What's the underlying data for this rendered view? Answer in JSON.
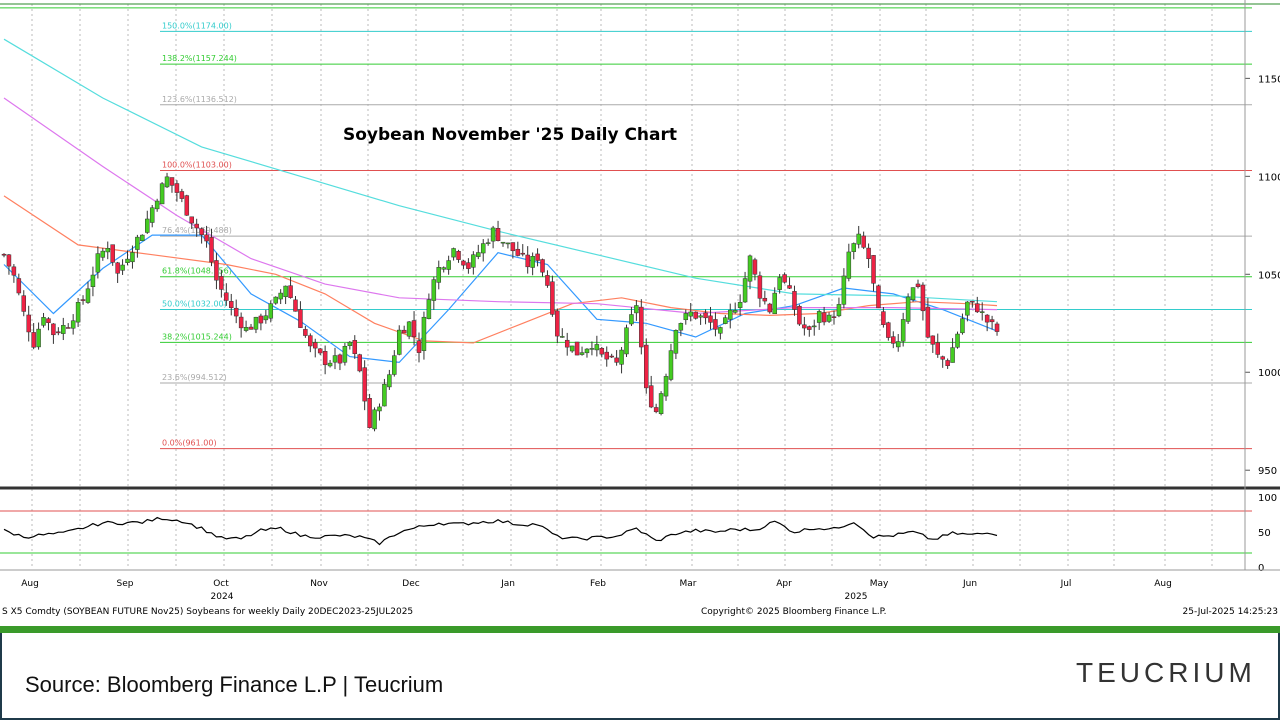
{
  "chart_data": {
    "type": "candlestick",
    "title": "Soybean November '25 Daily Chart",
    "price_axis": {
      "ticks": [
        950,
        1000,
        1050,
        1100,
        1150
      ],
      "range": [
        945,
        1190
      ]
    },
    "rsi_axis": {
      "ticks": [
        0,
        50,
        100
      ],
      "overbought": 80,
      "oversold": 20
    },
    "x_axis": {
      "months": [
        "Aug",
        "Sep",
        "Oct",
        "Nov",
        "Dec",
        "Jan",
        "Feb",
        "Mar",
        "Apr",
        "May",
        "Jun",
        "Jul",
        "Aug"
      ],
      "years": [
        "2024",
        "2025"
      ]
    },
    "fib_levels": [
      {
        "label": "0.0%(961.00)",
        "value": 961.0,
        "color": "#e05050"
      },
      {
        "label": "23.6%(994.512)",
        "value": 994.512,
        "color": "#aaaaaa"
      },
      {
        "label": "38.2%(1015.244)",
        "value": 1015.244,
        "color": "#33cc33"
      },
      {
        "label": "50.0%(1032.00)",
        "value": 1032.0,
        "color": "#33cccc"
      },
      {
        "label": "61.8%(1048.756)",
        "value": 1048.756,
        "color": "#33cc33"
      },
      {
        "label": "76.4%(1069.488)",
        "value": 1069.488,
        "color": "#aaaaaa"
      },
      {
        "label": "100.0%(1103.00)",
        "value": 1103.0,
        "color": "#e05050"
      },
      {
        "label": "123.6%(1136.512)",
        "value": 1136.512,
        "color": "#aaaaaa"
      },
      {
        "label": "138.2%(1157.244)",
        "value": 1157.244,
        "color": "#33cc33"
      },
      {
        "label": "150.0%(1174.00)",
        "value": 1174.0,
        "color": "#33cccc"
      }
    ],
    "price_path": [
      [
        0,
        1060
      ],
      [
        2,
        1049
      ],
      [
        4,
        1030
      ],
      [
        6,
        1015
      ],
      [
        8,
        1030
      ],
      [
        10,
        1020
      ],
      [
        13,
        1025
      ],
      [
        16,
        1037
      ],
      [
        19,
        1058
      ],
      [
        21,
        1065
      ],
      [
        23,
        1050
      ],
      [
        25,
        1060
      ],
      [
        28,
        1072
      ],
      [
        31,
        1090
      ],
      [
        33,
        1099
      ],
      [
        35,
        1092
      ],
      [
        38,
        1078
      ],
      [
        41,
        1066
      ],
      [
        43,
        1047
      ],
      [
        46,
        1032
      ],
      [
        49,
        1022
      ],
      [
        52,
        1027
      ],
      [
        55,
        1036
      ],
      [
        57,
        1045
      ],
      [
        60,
        1025
      ],
      [
        62,
        1012
      ],
      [
        65,
        1006
      ],
      [
        68,
        1006
      ],
      [
        70,
        1015
      ],
      [
        72,
        1000
      ],
      [
        74,
        972
      ],
      [
        76,
        985
      ],
      [
        78,
        999
      ],
      [
        80,
        1021
      ],
      [
        82,
        1025
      ],
      [
        84,
        1012
      ],
      [
        86,
        1040
      ],
      [
        88,
        1053
      ],
      [
        91,
        1063
      ],
      [
        94,
        1054
      ],
      [
        97,
        1065
      ],
      [
        99,
        1072
      ],
      [
        101,
        1067
      ],
      [
        104,
        1060
      ],
      [
        106,
        1055
      ],
      [
        108,
        1059
      ],
      [
        110,
        1045
      ],
      [
        112,
        1020
      ],
      [
        114,
        1015
      ],
      [
        116,
        1010
      ],
      [
        119,
        1015
      ],
      [
        121,
        1008
      ],
      [
        124,
        1004
      ],
      [
        126,
        1020
      ],
      [
        128,
        1035
      ],
      [
        130,
        990
      ],
      [
        132,
        980
      ],
      [
        134,
        1000
      ],
      [
        136,
        1024
      ],
      [
        139,
        1030
      ],
      [
        141,
        1028
      ],
      [
        143,
        1025
      ],
      [
        145,
        1020
      ],
      [
        147,
        1030
      ],
      [
        149,
        1038
      ],
      [
        151,
        1058
      ],
      [
        153,
        1040
      ],
      [
        155,
        1032
      ],
      [
        157,
        1050
      ],
      [
        159,
        1040
      ],
      [
        161,
        1025
      ],
      [
        163,
        1020
      ],
      [
        165,
        1030
      ],
      [
        167,
        1027
      ],
      [
        169,
        1033
      ],
      [
        171,
        1061
      ],
      [
        173,
        1068
      ],
      [
        175,
        1058
      ],
      [
        177,
        1030
      ],
      [
        179,
        1015
      ],
      [
        181,
        1017
      ],
      [
        183,
        1040
      ],
      [
        185,
        1045
      ],
      [
        187,
        1018
      ],
      [
        189,
        1008
      ],
      [
        191,
        1005
      ],
      [
        193,
        1020
      ],
      [
        195,
        1035
      ],
      [
        197,
        1033
      ],
      [
        199,
        1026
      ],
      [
        201,
        1021
      ]
    ],
    "rsi_path": [
      [
        0,
        52
      ],
      [
        4,
        43
      ],
      [
        8,
        46
      ],
      [
        12,
        48
      ],
      [
        16,
        56
      ],
      [
        20,
        63
      ],
      [
        24,
        63
      ],
      [
        28,
        64
      ],
      [
        32,
        70
      ],
      [
        36,
        66
      ],
      [
        40,
        55
      ],
      [
        44,
        41
      ],
      [
        48,
        40
      ],
      [
        52,
        52
      ],
      [
        56,
        55
      ],
      [
        60,
        45
      ],
      [
        64,
        43
      ],
      [
        68,
        45
      ],
      [
        72,
        43
      ],
      [
        76,
        34
      ],
      [
        80,
        50
      ],
      [
        84,
        57
      ],
      [
        88,
        63
      ],
      [
        92,
        61
      ],
      [
        96,
        64
      ],
      [
        100,
        66
      ],
      [
        104,
        61
      ],
      [
        108,
        61
      ],
      [
        112,
        43
      ],
      [
        116,
        40
      ],
      [
        120,
        42
      ],
      [
        124,
        44
      ],
      [
        128,
        55
      ],
      [
        132,
        37
      ],
      [
        136,
        48
      ],
      [
        140,
        52
      ],
      [
        144,
        50
      ],
      [
        148,
        54
      ],
      [
        152,
        53
      ],
      [
        156,
        65
      ],
      [
        160,
        50
      ],
      [
        164,
        56
      ],
      [
        168,
        54
      ],
      [
        172,
        65
      ],
      [
        176,
        43
      ],
      [
        180,
        45
      ],
      [
        184,
        50
      ],
      [
        188,
        39
      ],
      [
        192,
        48
      ],
      [
        196,
        46
      ],
      [
        200,
        49
      ],
      [
        201,
        47
      ]
    ],
    "moving_averages": [
      {
        "color": "#3399ff",
        "path": [
          [
            0,
            1055
          ],
          [
            10,
            1030
          ],
          [
            20,
            1053
          ],
          [
            30,
            1070
          ],
          [
            40,
            1070
          ],
          [
            50,
            1040
          ],
          [
            60,
            1026
          ],
          [
            70,
            1008
          ],
          [
            80,
            1005
          ],
          [
            90,
            1032
          ],
          [
            100,
            1061
          ],
          [
            110,
            1055
          ],
          [
            120,
            1027
          ],
          [
            130,
            1025
          ],
          [
            140,
            1018
          ],
          [
            150,
            1030
          ],
          [
            160,
            1034
          ],
          [
            170,
            1043
          ],
          [
            180,
            1040
          ],
          [
            190,
            1032
          ],
          [
            201,
            1021
          ]
        ]
      },
      {
        "color": "#ff8060",
        "path": [
          [
            0,
            1090
          ],
          [
            15,
            1065
          ],
          [
            30,
            1060
          ],
          [
            45,
            1055
          ],
          [
            55,
            1050
          ],
          [
            65,
            1040
          ],
          [
            75,
            1025
          ],
          [
            85,
            1016
          ],
          [
            95,
            1015
          ],
          [
            105,
            1025
          ],
          [
            115,
            1035
          ],
          [
            125,
            1038
          ],
          [
            135,
            1033
          ],
          [
            145,
            1030
          ],
          [
            155,
            1029
          ],
          [
            165,
            1030
          ],
          [
            175,
            1034
          ],
          [
            185,
            1036
          ],
          [
            195,
            1035
          ],
          [
            201,
            1034
          ]
        ]
      },
      {
        "color": "#dd77ee",
        "path": [
          [
            0,
            1140
          ],
          [
            20,
            1105
          ],
          [
            35,
            1080
          ],
          [
            50,
            1058
          ],
          [
            65,
            1045
          ],
          [
            80,
            1038
          ],
          [
            100,
            1036
          ],
          [
            120,
            1035
          ],
          [
            140,
            1030
          ],
          [
            160,
            1033
          ],
          [
            180,
            1033
          ],
          [
            201,
            1032
          ]
        ]
      },
      {
        "color": "#55dddd",
        "path": [
          [
            0,
            1170
          ],
          [
            20,
            1140
          ],
          [
            40,
            1115
          ],
          [
            60,
            1100
          ],
          [
            80,
            1085
          ],
          [
            100,
            1072
          ],
          [
            120,
            1060
          ],
          [
            140,
            1048
          ],
          [
            160,
            1040
          ],
          [
            180,
            1039
          ],
          [
            201,
            1036
          ]
        ]
      }
    ]
  },
  "footer_info": {
    "left": "S X5 Comdty (SOYBEAN FUTURE  Nov25) Soybeans for weekly  Daily 20DEC2023-25JUL2025",
    "center": "Copyright© 2025 Bloomberg Finance L.P.",
    "right": "25-Jul-2025 14:25:23"
  },
  "source_text": "Source: Bloomberg Finance L.P | Teucrium",
  "logo": {
    "part1": "TE",
    "part2": "UCRIUM"
  }
}
